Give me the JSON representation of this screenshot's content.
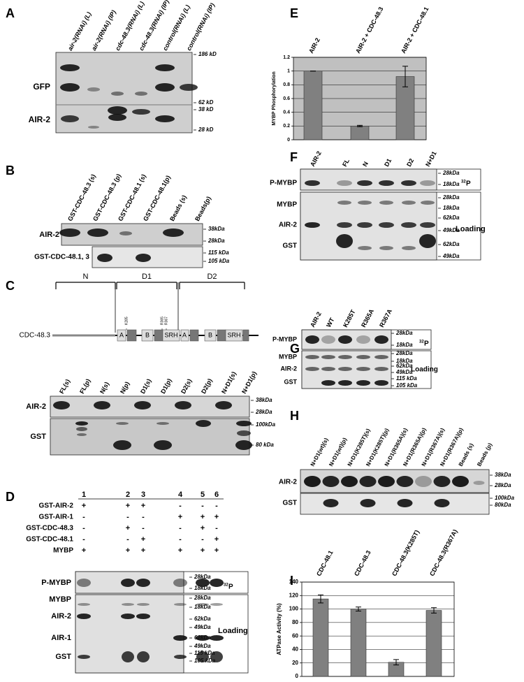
{
  "chart_data": [
    {
      "type": "bar",
      "panel_label": "E",
      "categories": [
        "AIR-2",
        "AIR-2 + CDC-48.3",
        "AIR-2 + CDC-48.1"
      ],
      "values": [
        1,
        0.2,
        0.92
      ],
      "errors": [
        0,
        0.01,
        0.15
      ],
      "y_label": "MYBP Phosphorylation",
      "ylim": [
        0,
        1.2
      ],
      "yticks": [
        0,
        0.2,
        0.4,
        0.6,
        0.8,
        1,
        1.2
      ],
      "grid": true,
      "color": "#808080",
      "background": "#c0c0c0"
    },
    {
      "type": "bar",
      "panel_label": "I",
      "categories": [
        "CDC-48.1",
        "CDC-48.3",
        "CDC-48.3(K285T)",
        "CDC-48.3(R367A)"
      ],
      "values": [
        115,
        100,
        21,
        98
      ],
      "errors": [
        6,
        3,
        4,
        4
      ],
      "y_label": "ATPase Activity (%)",
      "ylim": [
        0,
        140
      ],
      "yticks": [
        0,
        20,
        40,
        60,
        80,
        100,
        120,
        140
      ],
      "grid": true,
      "color": "#808080",
      "background": "#ffffff"
    }
  ],
  "blots": {
    "A": {
      "label": "A",
      "lanes": [
        "air-2(RNAi) (L)",
        "air-2(RNAi) (IP)",
        "cdc-48.3(RNAi) (L)",
        "cdc-48.3(RNAi) (IP)",
        "control(RNAi) (L)",
        "control(RNAi) (IP)"
      ],
      "rows": [
        "GFP",
        "AIR-2"
      ],
      "markers": [
        "186 kD",
        "62 kD",
        "38 kD",
        "28 kD"
      ]
    },
    "B": {
      "label": "B",
      "lanes": [
        "GST-CDC-48.3 (s)",
        "GST-CDC-48.3 (p)",
        "GST-CDC-48.1 (s)",
        "GST-CDC-48.1(p)",
        "Beads (s)",
        "Beads(p)"
      ],
      "rows": [
        "AIR-2",
        "GST-CDC-48.1, 3"
      ],
      "markers": [
        "38kDa",
        "28kDa",
        "115 kDa",
        "105 kDa"
      ]
    },
    "C": {
      "label": "C",
      "construct": {
        "name": "CDC-48.3",
        "domains": [
          "N",
          "D1",
          "D2"
        ],
        "motifs": [
          "A",
          "B",
          "SRH",
          "A",
          "B",
          "SRH"
        ],
        "residues": [
          "K285",
          "R365",
          "R367"
        ]
      },
      "lanes": [
        "FL(s)",
        "FL(p)",
        "N(s)",
        "N(p)",
        "D1(s)",
        "D1(p)",
        "D2(s)",
        "D2(p)",
        "N+D1(s)",
        "N+D1(p)"
      ],
      "rows": [
        "AIR-2",
        "GST"
      ],
      "markers": [
        "38kDa",
        "28kDa",
        "100kDa",
        "80 kDa"
      ]
    },
    "D": {
      "label": "D",
      "conditions": {
        "columns": [
          "1",
          "2",
          "3",
          "4",
          "5",
          "6"
        ],
        "rows": [
          {
            "name": "GST-AIR-2",
            "marks": [
              "+",
              "+",
              "+",
              "-",
              "-",
              "-"
            ]
          },
          {
            "name": "GST-AIR-1",
            "marks": [
              "-",
              "-",
              "-",
              "+",
              "+",
              "+"
            ]
          },
          {
            "name": "GST-CDC-48.3",
            "marks": [
              "-",
              "+",
              "-",
              "-",
              "+",
              "-"
            ]
          },
          {
            "name": "GST-CDC-48.1",
            "marks": [
              "-",
              "-",
              "+",
              "-",
              "-",
              "+"
            ]
          },
          {
            "name": "MYBP",
            "marks": [
              "+",
              "+",
              "+",
              "+",
              "+",
              "+"
            ]
          }
        ]
      },
      "rows": [
        "P-MYBP",
        "MYBP",
        "AIR-2",
        "AIR-1",
        "GST"
      ],
      "markers": [
        "28kDa",
        "18kDa",
        "28kDa",
        "18kDa",
        "62kDa",
        "49kDa",
        "62kDa",
        "49kDa",
        "115 kDa",
        "105 kDa"
      ],
      "radiolabel": {
        "mass": "32",
        "element": "P"
      },
      "loading": "Loading"
    },
    "F": {
      "label": "F",
      "lanes": [
        "AIR-2",
        "FL",
        "N",
        "D1",
        "D2",
        "N+D1"
      ],
      "rows": [
        "P-MYBP",
        "MYBP",
        "AIR-2",
        "GST"
      ],
      "markers": [
        "28kDa",
        "18kDa",
        "28kDa",
        "18kDa",
        "62kDa",
        "49kDa",
        "62kDa",
        "49kDa"
      ],
      "radiolabel": {
        "mass": "32",
        "element": "P"
      },
      "loading": "Loading"
    },
    "G": {
      "label": "G",
      "lanes": [
        "AIR-2",
        "WT",
        "K285T",
        "R365A",
        "R367A"
      ],
      "rows": [
        "P-MYBP",
        "MYBP",
        "AIR-2",
        "GST"
      ],
      "markers": [
        "28kDa",
        "18kDa",
        "28kDa",
        "18kDa",
        "62kDa",
        "49kDa",
        "115 kDa",
        "105 kDa"
      ],
      "radiolabel": {
        "mass": "32",
        "element": "P"
      },
      "loading": "Loading"
    },
    "H": {
      "label": "H",
      "lanes": [
        "N+D1(wt)(s)",
        "N+D1(wt)(p)",
        "N+D1(K285T)(s)",
        "N+D1(K285T)(p)",
        "N+D1(R365A)(s)",
        "N+D1(R365A)(p)",
        "N+D1(R367A)(s)",
        "N+D1(R367A)(p)",
        "Beads (s)",
        "Beads (p)"
      ],
      "rows": [
        "AIR-2",
        "GST"
      ],
      "markers": [
        "38kDa",
        "28kDa",
        "100kDa",
        "80kDa"
      ]
    }
  }
}
